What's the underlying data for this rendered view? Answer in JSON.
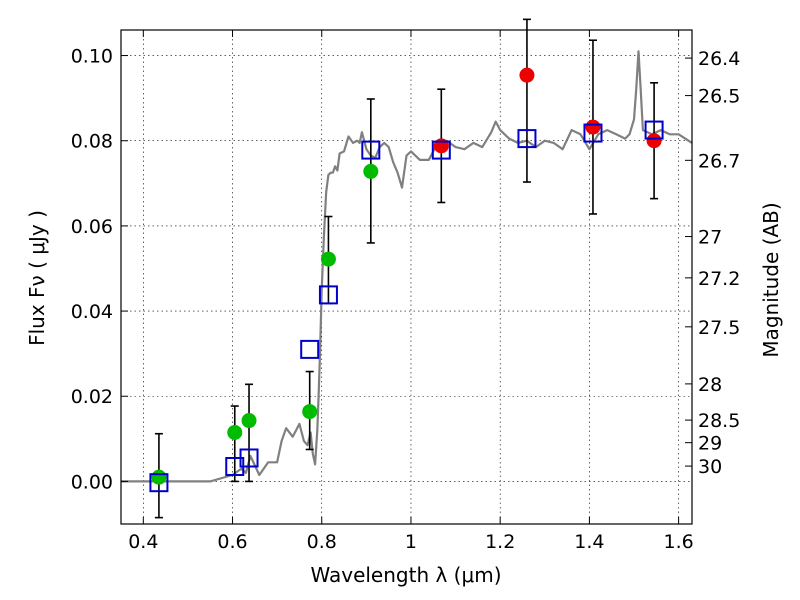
{
  "chart_data": {
    "type": "scatter",
    "xlabel": "Wavelength  λ (μm)",
    "ylabel": "Flux  Fν  ( μJy )",
    "ylabel_right": "Magnitude (AB)",
    "xlim": [
      0.35,
      1.63
    ],
    "ylim": [
      -0.01,
      0.106
    ],
    "grid": true,
    "x_ticks": [
      0.4,
      0.6,
      0.8,
      1.0,
      1.2,
      1.4,
      1.6
    ],
    "x_tick_labels": [
      "0.4",
      "0.6",
      "0.8",
      "1",
      "1.2",
      "1.4",
      "1.6"
    ],
    "y_ticks": [
      0.0,
      0.02,
      0.04,
      0.06,
      0.08,
      0.1
    ],
    "y_tick_labels": [
      "0.00",
      "0.02",
      "0.04",
      "0.06",
      "0.08",
      "0.10"
    ],
    "right_ticks": [
      {
        "label": "26.4",
        "flux": 0.0994
      },
      {
        "label": "26.5",
        "flux": 0.0906
      },
      {
        "label": "26.7",
        "flux": 0.0754
      },
      {
        "label": "27",
        "flux": 0.0575
      },
      {
        "label": "27.2",
        "flux": 0.0478
      },
      {
        "label": "27.5",
        "flux": 0.0363
      },
      {
        "label": "28",
        "flux": 0.0229
      },
      {
        "label": "28.5",
        "flux": 0.0144
      },
      {
        "label": "29",
        "flux": 0.0091
      },
      {
        "label": "30",
        "flux": 0.0036
      }
    ],
    "series": [
      {
        "marker": "circle",
        "color": "#00bb00",
        "x": [
          0.435,
          0.605,
          0.637,
          0.773,
          0.815,
          0.91
        ],
        "y": [
          0.001,
          0.0115,
          0.0143,
          0.0164,
          0.0522,
          0.0728
        ],
        "yerr_low": [
          -0.0085,
          0.0,
          0.0,
          0.0075,
          0.0418,
          0.056
        ],
        "yerr_high": [
          0.0112,
          0.0177,
          0.0228,
          0.0258,
          0.0622,
          0.0898
        ]
      },
      {
        "marker": "circle",
        "color": "#ee0000",
        "x": [
          1.068,
          1.26,
          1.408,
          1.545
        ],
        "y": [
          0.0788,
          0.0954,
          0.0832,
          0.08
        ],
        "yerr_low": [
          0.0655,
          0.0703,
          0.0628,
          0.0664
        ],
        "yerr_high": [
          0.0921,
          0.1085,
          0.1036,
          0.0936
        ]
      },
      {
        "marker": "square",
        "color": "#0000cc",
        "x": [
          0.435,
          0.605,
          0.637,
          0.773,
          0.815,
          0.91,
          1.068,
          1.26,
          1.408,
          1.545
        ],
        "y": [
          -0.0003,
          0.0035,
          0.0055,
          0.031,
          0.0438,
          0.0778,
          0.0778,
          0.0805,
          0.0818,
          0.0825
        ]
      },
      {
        "marker": "line",
        "color": "#808080",
        "x": [
          0.35,
          0.45,
          0.55,
          0.6,
          0.62,
          0.63,
          0.64,
          0.66,
          0.68,
          0.7,
          0.71,
          0.72,
          0.735,
          0.75,
          0.76,
          0.768,
          0.775,
          0.78,
          0.785,
          0.79,
          0.793,
          0.796,
          0.8,
          0.805,
          0.81,
          0.815,
          0.82,
          0.825,
          0.83,
          0.835,
          0.84,
          0.85,
          0.86,
          0.87,
          0.88,
          0.885,
          0.89,
          0.9,
          0.91,
          0.92,
          0.93,
          0.94,
          0.95,
          0.96,
          0.97,
          0.98,
          0.99,
          1.0,
          1.02,
          1.04,
          1.06,
          1.08,
          1.1,
          1.12,
          1.14,
          1.16,
          1.18,
          1.19,
          1.2,
          1.22,
          1.24,
          1.26,
          1.28,
          1.3,
          1.32,
          1.34,
          1.36,
          1.38,
          1.4,
          1.42,
          1.44,
          1.46,
          1.48,
          1.49,
          1.5,
          1.505,
          1.51,
          1.515,
          1.52,
          1.54,
          1.56,
          1.58,
          1.6,
          1.63
        ],
        "y": [
          0.0,
          0.0,
          0.0,
          0.0015,
          0.003,
          0.002,
          0.006,
          0.0015,
          0.0045,
          0.0045,
          0.0095,
          0.0125,
          0.0105,
          0.0135,
          0.0095,
          0.0085,
          0.0115,
          0.0065,
          0.004,
          0.012,
          0.02,
          0.03,
          0.045,
          0.058,
          0.068,
          0.072,
          0.0725,
          0.0725,
          0.074,
          0.073,
          0.077,
          0.0775,
          0.081,
          0.0795,
          0.08,
          0.0795,
          0.082,
          0.078,
          0.0765,
          0.076,
          0.0785,
          0.0795,
          0.0785,
          0.075,
          0.0725,
          0.069,
          0.0765,
          0.0775,
          0.0755,
          0.0755,
          0.0795,
          0.08,
          0.0785,
          0.078,
          0.0795,
          0.0785,
          0.082,
          0.0845,
          0.0825,
          0.0805,
          0.0795,
          0.08,
          0.0785,
          0.08,
          0.0795,
          0.078,
          0.0825,
          0.0815,
          0.078,
          0.0815,
          0.0825,
          0.0815,
          0.0805,
          0.0815,
          0.085,
          0.092,
          0.101,
          0.092,
          0.0825,
          0.0815,
          0.0825,
          0.0815,
          0.0815,
          0.0795
        ]
      }
    ]
  }
}
